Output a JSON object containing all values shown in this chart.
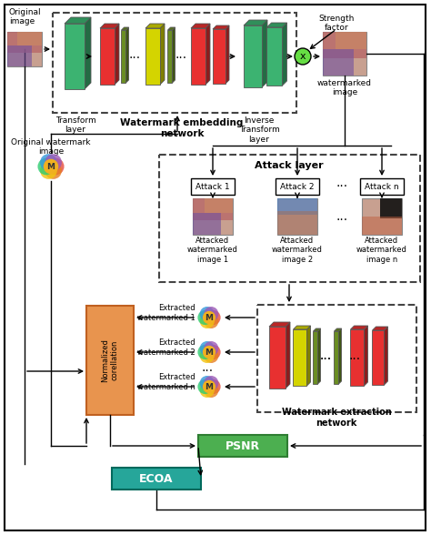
{
  "bg_color": "#ffffff",
  "green_layer": "#3cb371",
  "red_layer": "#e83030",
  "yellow_layer": "#d4d400",
  "olive_layer": "#6b8e23",
  "psnr_color": "#4caf50",
  "ecoa_color": "#26a69a",
  "nc_color": "#e8944e",
  "mult_color": "#66dd44",
  "labels": {
    "original_image": "Original\nimage",
    "original_watermark": "Original watermark\nimage",
    "transform_layer": "Transform\nlayer",
    "watermark_embedding": "Watermark embedding\nnetwork",
    "inverse_transform": "Inverse\nTransform\nlayer",
    "strength_factor": "Strength\nfactor",
    "watermarked_image": "watermarked\nimage",
    "attack_layer": "Attack layer",
    "attack1": "Attack 1",
    "attack2": "Attack 2",
    "attackn": "Attack n",
    "attacked1": "Attacked\nwatermarked\nimage 1",
    "attacked2": "Attacked\nwatermarked\nimage 2",
    "attackedn": "Attacked\nwatermarked\nimage n",
    "extracted1": "Extracted\nwatermarked 1",
    "extracted2": "Extracted\nwatermarked 2",
    "extractedn": "Extracted\nwatermarked n",
    "watermark_extraction": "Watermark extraction\nnetwork",
    "normalized": "Normalized\ncorellation",
    "psnr": "PSNR",
    "ecoa": "ECOA"
  }
}
